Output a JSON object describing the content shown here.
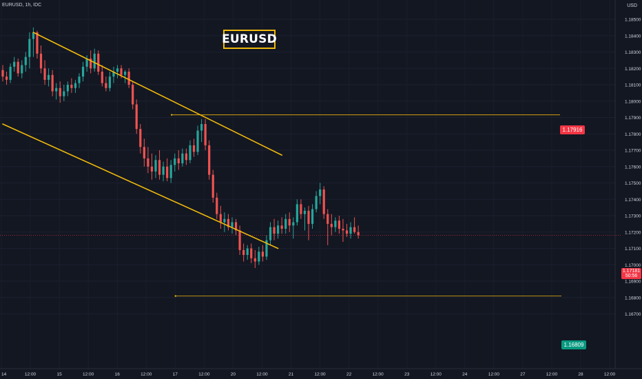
{
  "header": {
    "symbol_line": "EURUSD, 1h, IDC",
    "currency": "USD"
  },
  "title": "EURUSD",
  "price_tags": {
    "upper": "1.17916",
    "lower": "1.16809",
    "current_price": "1.17181",
    "countdown": "50:56"
  },
  "colors": {
    "background": "#131722",
    "bull": "#26a69a",
    "bear": "#ef5350",
    "trendline": "#f0b90b",
    "current_line": "#f23645",
    "axis_text": "#d1d4dc"
  },
  "chart_data": {
    "type": "candlestick",
    "y_axis": {
      "ticks": [
        "1.18500",
        "1.18400",
        "1.18300",
        "1.18200",
        "1.18100",
        "1.18000",
        "1.17900",
        "1.17800",
        "1.17700",
        "1.17600",
        "1.17500",
        "1.17400",
        "1.17300",
        "1.17200",
        "1.17100",
        "1.17000",
        "1.16900",
        "1.16800",
        "1.16700"
      ],
      "ylim": [
        1.1665,
        1.1855
      ]
    },
    "x_axis": {
      "ticks": [
        "14",
        "12:00",
        "15",
        "12:00",
        "16",
        "12:00",
        "17",
        "12:00",
        "20",
        "12:00",
        "21",
        "12:00",
        "22",
        "12:00",
        "23",
        "12:00",
        "24",
        "12:00",
        "27",
        "12:00",
        "28",
        "12:00"
      ]
    },
    "trendlines": [
      {
        "name": "channel-upper",
        "from_bar": 8,
        "from_price": 1.1842,
        "to_bar": 73,
        "to_price": 1.1767
      },
      {
        "name": "channel-lower",
        "from_bar": 0,
        "from_price": 1.1786,
        "to_bar": 72,
        "to_price": 1.171
      }
    ],
    "horizontal_levels": [
      {
        "price": 1.17916,
        "start_bar": 44
      },
      {
        "price": 1.16809,
        "start_bar": 45
      }
    ],
    "current_price": 1.17181,
    "candles": [
      {
        "o": 1.1819,
        "h": 1.1822,
        "l": 1.1812,
        "c": 1.1815
      },
      {
        "o": 1.1815,
        "h": 1.1818,
        "l": 1.181,
        "c": 1.1813
      },
      {
        "o": 1.1813,
        "h": 1.1823,
        "l": 1.1811,
        "c": 1.1821
      },
      {
        "o": 1.1821,
        "h": 1.1827,
        "l": 1.1818,
        "c": 1.1824
      },
      {
        "o": 1.1824,
        "h": 1.1826,
        "l": 1.1815,
        "c": 1.1817
      },
      {
        "o": 1.1817,
        "h": 1.1825,
        "l": 1.1814,
        "c": 1.1822
      },
      {
        "o": 1.1822,
        "h": 1.183,
        "l": 1.1818,
        "c": 1.1827
      },
      {
        "o": 1.1827,
        "h": 1.1842,
        "l": 1.182,
        "c": 1.1838
      },
      {
        "o": 1.1838,
        "h": 1.1845,
        "l": 1.1827,
        "c": 1.1842
      },
      {
        "o": 1.1842,
        "h": 1.1843,
        "l": 1.1826,
        "c": 1.1829
      },
      {
        "o": 1.1829,
        "h": 1.1834,
        "l": 1.1817,
        "c": 1.182
      },
      {
        "o": 1.182,
        "h": 1.1825,
        "l": 1.181,
        "c": 1.1813
      },
      {
        "o": 1.1813,
        "h": 1.182,
        "l": 1.1809,
        "c": 1.1816
      },
      {
        "o": 1.1816,
        "h": 1.1819,
        "l": 1.1803,
        "c": 1.1806
      },
      {
        "o": 1.1806,
        "h": 1.1811,
        "l": 1.1801,
        "c": 1.1808
      },
      {
        "o": 1.1808,
        "h": 1.1812,
        "l": 1.1799,
        "c": 1.1803
      },
      {
        "o": 1.1803,
        "h": 1.181,
        "l": 1.18,
        "c": 1.1806
      },
      {
        "o": 1.1806,
        "h": 1.1812,
        "l": 1.1803,
        "c": 1.181
      },
      {
        "o": 1.181,
        "h": 1.1814,
        "l": 1.1805,
        "c": 1.1808
      },
      {
        "o": 1.1808,
        "h": 1.1813,
        "l": 1.1805,
        "c": 1.1811
      },
      {
        "o": 1.1811,
        "h": 1.1817,
        "l": 1.1808,
        "c": 1.1815
      },
      {
        "o": 1.1815,
        "h": 1.1824,
        "l": 1.1812,
        "c": 1.1821
      },
      {
        "o": 1.1821,
        "h": 1.1828,
        "l": 1.1818,
        "c": 1.1826
      },
      {
        "o": 1.1826,
        "h": 1.1831,
        "l": 1.1817,
        "c": 1.182
      },
      {
        "o": 1.182,
        "h": 1.1832,
        "l": 1.1818,
        "c": 1.1829
      },
      {
        "o": 1.1829,
        "h": 1.1831,
        "l": 1.1816,
        "c": 1.1818
      },
      {
        "o": 1.1818,
        "h": 1.1822,
        "l": 1.1809,
        "c": 1.1811
      },
      {
        "o": 1.1811,
        "h": 1.1815,
        "l": 1.1806,
        "c": 1.1808
      },
      {
        "o": 1.1808,
        "h": 1.1818,
        "l": 1.1806,
        "c": 1.1815
      },
      {
        "o": 1.1815,
        "h": 1.1821,
        "l": 1.1811,
        "c": 1.1818
      },
      {
        "o": 1.1818,
        "h": 1.1822,
        "l": 1.1814,
        "c": 1.182
      },
      {
        "o": 1.182,
        "h": 1.1822,
        "l": 1.1814,
        "c": 1.1816
      },
      {
        "o": 1.1816,
        "h": 1.1819,
        "l": 1.1811,
        "c": 1.1818
      },
      {
        "o": 1.1818,
        "h": 1.182,
        "l": 1.1808,
        "c": 1.181
      },
      {
        "o": 1.181,
        "h": 1.1812,
        "l": 1.1795,
        "c": 1.1798
      },
      {
        "o": 1.1798,
        "h": 1.1801,
        "l": 1.178,
        "c": 1.1783
      },
      {
        "o": 1.1783,
        "h": 1.1786,
        "l": 1.1768,
        "c": 1.1772
      },
      {
        "o": 1.1772,
        "h": 1.1777,
        "l": 1.176,
        "c": 1.1765
      },
      {
        "o": 1.1765,
        "h": 1.1772,
        "l": 1.1756,
        "c": 1.176
      },
      {
        "o": 1.176,
        "h": 1.1768,
        "l": 1.1752,
        "c": 1.1757
      },
      {
        "o": 1.1757,
        "h": 1.1767,
        "l": 1.1753,
        "c": 1.1764
      },
      {
        "o": 1.1764,
        "h": 1.177,
        "l": 1.1752,
        "c": 1.1755
      },
      {
        "o": 1.1755,
        "h": 1.1763,
        "l": 1.1751,
        "c": 1.176
      },
      {
        "o": 1.176,
        "h": 1.1765,
        "l": 1.1751,
        "c": 1.1753
      },
      {
        "o": 1.1753,
        "h": 1.1764,
        "l": 1.175,
        "c": 1.1761
      },
      {
        "o": 1.1761,
        "h": 1.1768,
        "l": 1.1757,
        "c": 1.1765
      },
      {
        "o": 1.1765,
        "h": 1.177,
        "l": 1.1758,
        "c": 1.1762
      },
      {
        "o": 1.1762,
        "h": 1.1771,
        "l": 1.176,
        "c": 1.1768
      },
      {
        "o": 1.1768,
        "h": 1.1771,
        "l": 1.1761,
        "c": 1.1764
      },
      {
        "o": 1.1764,
        "h": 1.1776,
        "l": 1.1762,
        "c": 1.1773
      },
      {
        "o": 1.1773,
        "h": 1.1777,
        "l": 1.1766,
        "c": 1.1769
      },
      {
        "o": 1.1769,
        "h": 1.1785,
        "l": 1.1767,
        "c": 1.1782
      },
      {
        "o": 1.1782,
        "h": 1.1789,
        "l": 1.1775,
        "c": 1.1786
      },
      {
        "o": 1.1786,
        "h": 1.1789,
        "l": 1.177,
        "c": 1.1773
      },
      {
        "o": 1.1773,
        "h": 1.1776,
        "l": 1.1752,
        "c": 1.1755
      },
      {
        "o": 1.1755,
        "h": 1.1758,
        "l": 1.1738,
        "c": 1.1741
      },
      {
        "o": 1.1741,
        "h": 1.1744,
        "l": 1.1728,
        "c": 1.1731
      },
      {
        "o": 1.1731,
        "h": 1.1736,
        "l": 1.1722,
        "c": 1.1726
      },
      {
        "o": 1.1726,
        "h": 1.1732,
        "l": 1.172,
        "c": 1.1728
      },
      {
        "o": 1.1728,
        "h": 1.1731,
        "l": 1.1721,
        "c": 1.1723
      },
      {
        "o": 1.1723,
        "h": 1.1729,
        "l": 1.1719,
        "c": 1.1726
      },
      {
        "o": 1.1726,
        "h": 1.1728,
        "l": 1.1718,
        "c": 1.1721
      },
      {
        "o": 1.1721,
        "h": 1.1724,
        "l": 1.1706,
        "c": 1.1709
      },
      {
        "o": 1.1709,
        "h": 1.1713,
        "l": 1.1702,
        "c": 1.1706
      },
      {
        "o": 1.1706,
        "h": 1.1712,
        "l": 1.1703,
        "c": 1.171
      },
      {
        "o": 1.171,
        "h": 1.1713,
        "l": 1.1701,
        "c": 1.1704
      },
      {
        "o": 1.1704,
        "h": 1.1709,
        "l": 1.1698,
        "c": 1.1702
      },
      {
        "o": 1.1702,
        "h": 1.1711,
        "l": 1.17,
        "c": 1.1708
      },
      {
        "o": 1.1708,
        "h": 1.1712,
        "l": 1.1702,
        "c": 1.1705
      },
      {
        "o": 1.1705,
        "h": 1.1718,
        "l": 1.1703,
        "c": 1.1715
      },
      {
        "o": 1.1715,
        "h": 1.1726,
        "l": 1.1712,
        "c": 1.1723
      },
      {
        "o": 1.1723,
        "h": 1.1728,
        "l": 1.1715,
        "c": 1.1719
      },
      {
        "o": 1.1719,
        "h": 1.1727,
        "l": 1.1716,
        "c": 1.1724
      },
      {
        "o": 1.1724,
        "h": 1.1729,
        "l": 1.1719,
        "c": 1.1722
      },
      {
        "o": 1.1722,
        "h": 1.1731,
        "l": 1.1719,
        "c": 1.1728
      },
      {
        "o": 1.1728,
        "h": 1.1732,
        "l": 1.172,
        "c": 1.1724
      },
      {
        "o": 1.1724,
        "h": 1.1729,
        "l": 1.1716,
        "c": 1.1726
      },
      {
        "o": 1.1726,
        "h": 1.174,
        "l": 1.1724,
        "c": 1.1737
      },
      {
        "o": 1.1737,
        "h": 1.174,
        "l": 1.1728,
        "c": 1.1731
      },
      {
        "o": 1.1731,
        "h": 1.1735,
        "l": 1.1721,
        "c": 1.1733
      },
      {
        "o": 1.1733,
        "h": 1.1736,
        "l": 1.1715,
        "c": 1.1725
      },
      {
        "o": 1.1725,
        "h": 1.1737,
        "l": 1.1722,
        "c": 1.1734
      },
      {
        "o": 1.1734,
        "h": 1.1745,
        "l": 1.1732,
        "c": 1.1742
      },
      {
        "o": 1.1742,
        "h": 1.175,
        "l": 1.1737,
        "c": 1.1746
      },
      {
        "o": 1.1746,
        "h": 1.1748,
        "l": 1.1728,
        "c": 1.1731
      },
      {
        "o": 1.1731,
        "h": 1.1734,
        "l": 1.1712,
        "c": 1.1725
      },
      {
        "o": 1.1725,
        "h": 1.1731,
        "l": 1.1718,
        "c": 1.1723
      },
      {
        "o": 1.1723,
        "h": 1.1729,
        "l": 1.172,
        "c": 1.1727
      },
      {
        "o": 1.1727,
        "h": 1.173,
        "l": 1.1719,
        "c": 1.1722
      },
      {
        "o": 1.1722,
        "h": 1.1728,
        "l": 1.1714,
        "c": 1.1721
      },
      {
        "o": 1.1721,
        "h": 1.1725,
        "l": 1.1717,
        "c": 1.1719
      },
      {
        "o": 1.1719,
        "h": 1.1726,
        "l": 1.1716,
        "c": 1.1723
      },
      {
        "o": 1.1723,
        "h": 1.1729,
        "l": 1.1719,
        "c": 1.172
      },
      {
        "o": 1.172,
        "h": 1.1724,
        "l": 1.1716,
        "c": 1.1718
      }
    ]
  }
}
